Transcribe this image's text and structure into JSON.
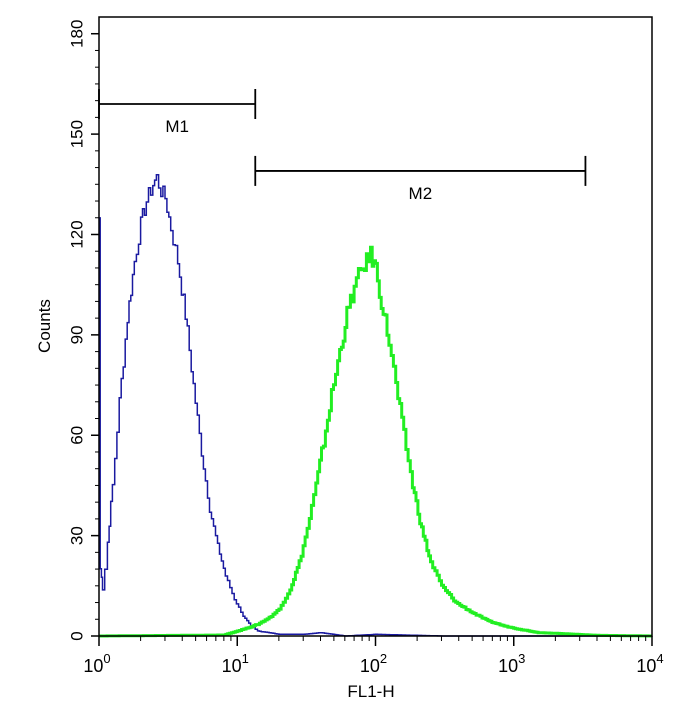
{
  "chart_data": {
    "type": "line",
    "xlabel": "FL1-H",
    "ylabel": "Counts",
    "xscale": "log",
    "xlim": [
      1,
      10000
    ],
    "ylim": [
      0,
      185
    ],
    "x_ticks": [
      {
        "value": 1,
        "base": "10",
        "exp": "0"
      },
      {
        "value": 10,
        "base": "10",
        "exp": "1"
      },
      {
        "value": 100,
        "base": "10",
        "exp": "2"
      },
      {
        "value": 1000,
        "base": "10",
        "exp": "3"
      },
      {
        "value": 10000,
        "base": "10",
        "exp": "4"
      }
    ],
    "y_ticks": [
      {
        "value": 0,
        "label": "0"
      },
      {
        "value": 30,
        "label": "30"
      },
      {
        "value": 60,
        "label": "60"
      },
      {
        "value": 90,
        "label": "90"
      },
      {
        "value": 120,
        "label": "120"
      },
      {
        "value": 150,
        "label": "150"
      },
      {
        "value": 180,
        "label": "180"
      }
    ],
    "grid": false,
    "series": [
      {
        "color": "#1a1aa0",
        "points": [
          [
            1.0,
            125
          ],
          [
            1.02,
            20
          ],
          [
            1.04,
            18
          ],
          [
            1.06,
            14
          ],
          [
            1.1,
            20
          ],
          [
            1.15,
            28
          ],
          [
            1.25,
            45
          ],
          [
            1.4,
            70
          ],
          [
            1.6,
            95
          ],
          [
            1.8,
            112
          ],
          [
            2.0,
            123
          ],
          [
            2.2,
            130
          ],
          [
            2.45,
            135
          ],
          [
            2.6,
            137
          ],
          [
            2.8,
            133
          ],
          [
            3.0,
            131
          ],
          [
            3.3,
            122
          ],
          [
            3.7,
            112
          ],
          [
            4.2,
            96
          ],
          [
            4.8,
            75
          ],
          [
            5.5,
            55
          ],
          [
            6.3,
            38
          ],
          [
            7.2,
            27
          ],
          [
            8.2,
            18
          ],
          [
            9.5,
            11
          ],
          [
            11,
            6
          ],
          [
            12.5,
            3
          ],
          [
            14,
            1.5
          ],
          [
            17,
            1
          ],
          [
            20,
            0.5
          ],
          [
            30,
            0.5
          ],
          [
            40,
            1
          ],
          [
            60,
            0
          ],
          [
            100,
            0.5
          ],
          [
            300,
            0
          ],
          [
            10000,
            0
          ]
        ]
      },
      {
        "color": "#22ee22",
        "points": [
          [
            1,
            0
          ],
          [
            8,
            0.3
          ],
          [
            10,
            1.5
          ],
          [
            12,
            2.5
          ],
          [
            14,
            3.5
          ],
          [
            17,
            5.5
          ],
          [
            20,
            8
          ],
          [
            24,
            14
          ],
          [
            28,
            22
          ],
          [
            32,
            32
          ],
          [
            37,
            45
          ],
          [
            42,
            58
          ],
          [
            48,
            72
          ],
          [
            55,
            85
          ],
          [
            62,
            96
          ],
          [
            70,
            104
          ],
          [
            78,
            109
          ],
          [
            86,
            112
          ],
          [
            92,
            114
          ],
          [
            100,
            110
          ],
          [
            110,
            100
          ],
          [
            125,
            88
          ],
          [
            140,
            75
          ],
          [
            160,
            60
          ],
          [
            185,
            45
          ],
          [
            215,
            32
          ],
          [
            250,
            22
          ],
          [
            300,
            15
          ],
          [
            380,
            10
          ],
          [
            500,
            7
          ],
          [
            650,
            4.5
          ],
          [
            850,
            3
          ],
          [
            1100,
            2
          ],
          [
            1500,
            1
          ],
          [
            2000,
            0.8
          ],
          [
            2800,
            0.5
          ],
          [
            4000,
            0.2
          ],
          [
            10000,
            0
          ]
        ]
      }
    ],
    "markers": [
      {
        "label": "M1",
        "x_start": 1.0,
        "x_end": 13.5,
        "y": 159
      },
      {
        "label": "M2",
        "x_start": 13.5,
        "x_end": 3300,
        "y": 139
      }
    ]
  }
}
